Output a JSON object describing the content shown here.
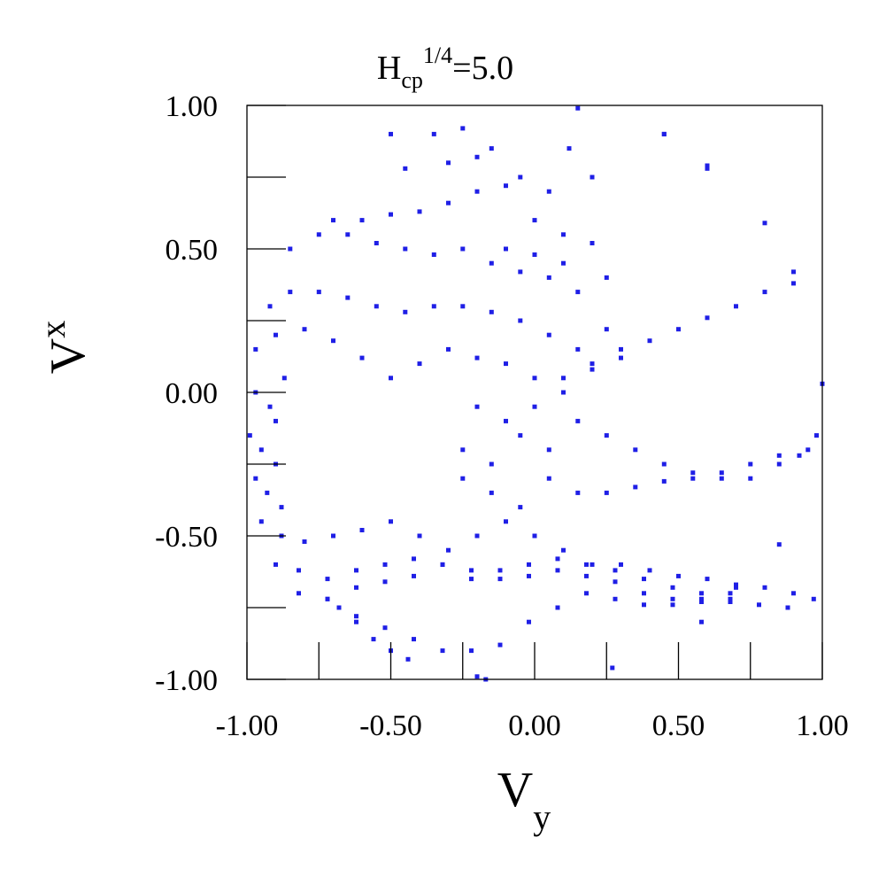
{
  "chart_data": {
    "type": "scatter",
    "title_parts": {
      "main": "H",
      "sub": "cp",
      "sup": "1/4",
      "rest": "=5.0"
    },
    "xlabel_parts": {
      "main": "V",
      "sub": "y"
    },
    "ylabel_parts": {
      "main": "V",
      "sub": "x"
    },
    "xlim": [
      -1.0,
      1.0
    ],
    "ylim": [
      -1.0,
      1.0
    ],
    "xticks": [
      -1.0,
      -0.75,
      -0.5,
      -0.25,
      0.0,
      0.25,
      0.5,
      0.75,
      1.0
    ],
    "yticks": [
      -1.0,
      -0.75,
      -0.5,
      -0.25,
      0.0,
      0.25,
      0.5,
      0.75,
      1.0
    ],
    "xtick_labels": [
      "-1.00",
      "-0.50",
      "0.00",
      "0.50",
      "1.00"
    ],
    "xtick_label_values": [
      -1.0,
      -0.5,
      0.0,
      0.5,
      1.0
    ],
    "ytick_labels": [
      "1.00",
      "0.50",
      "0.00",
      "-0.50",
      "-1.00"
    ],
    "ytick_label_values": [
      1.0,
      0.5,
      0.0,
      -0.5,
      -1.0
    ],
    "grid": false,
    "marker_color": "#1f1fe6",
    "description": "",
    "x": [
      -0.5,
      -0.35,
      -0.25,
      -0.15,
      -0.05,
      0.05,
      0.12,
      0.2,
      -0.45,
      -0.3,
      -0.2,
      -0.1,
      0.0,
      0.1,
      -0.7,
      -0.6,
      -0.5,
      -0.4,
      -0.3,
      -0.2,
      -0.1,
      0.0,
      0.1,
      0.2,
      -0.85,
      -0.75,
      -0.65,
      -0.55,
      -0.45,
      -0.35,
      -0.25,
      -0.15,
      -0.05,
      0.05,
      0.15,
      0.25,
      -0.92,
      -0.85,
      -0.75,
      -0.65,
      -0.55,
      -0.45,
      -0.35,
      -0.25,
      -0.15,
      -0.05,
      0.05,
      0.15,
      0.25,
      -0.97,
      -0.9,
      -0.8,
      -0.7,
      -0.6,
      -0.5,
      -0.4,
      -0.3,
      -0.2,
      -0.1,
      0.0,
      0.1,
      0.2,
      0.3,
      -0.97,
      -0.92,
      -0.87,
      -0.9,
      -0.2,
      -0.1,
      0.0,
      0.1,
      0.2,
      0.3,
      0.4,
      0.5,
      0.6,
      0.7,
      0.8,
      0.9,
      -0.99,
      -0.95,
      -0.9,
      -0.25,
      -0.15,
      -0.05,
      0.05,
      0.15,
      0.25,
      0.35,
      0.45,
      0.55,
      0.65,
      0.75,
      0.85,
      0.92,
      -0.97,
      -0.93,
      -0.88,
      -0.25,
      -0.15,
      -0.05,
      0.05,
      0.15,
      0.25,
      0.35,
      0.45,
      0.55,
      0.65,
      0.75,
      0.85,
      0.95,
      -0.95,
      -0.88,
      -0.8,
      -0.7,
      -0.6,
      -0.5,
      -0.4,
      -0.3,
      -0.2,
      -0.1,
      0.0,
      0.1,
      0.2,
      0.3,
      0.4,
      0.5,
      0.6,
      0.7,
      0.8,
      0.9,
      0.97,
      -0.9,
      -0.82,
      -0.72,
      -0.62,
      -0.52,
      -0.42,
      -0.32,
      -0.22,
      -0.12,
      -0.02,
      0.08,
      0.18,
      0.28,
      0.38,
      0.48,
      0.58,
      0.68,
      0.78,
      0.88,
      -0.82,
      -0.72,
      -0.62,
      -0.52,
      -0.42,
      -0.32,
      -0.22,
      -0.12,
      -0.02,
      0.08,
      0.18,
      0.28,
      0.38,
      0.48,
      0.58,
      0.68,
      -0.72,
      -0.62,
      -0.52,
      -0.42,
      -0.32,
      -0.22,
      -0.12,
      -0.02,
      0.08,
      0.18,
      0.28,
      0.38,
      0.48,
      0.58,
      0.68,
      -0.68,
      -0.62,
      -0.56,
      -0.5,
      -0.44,
      -0.2,
      -0.17,
      0.15,
      0.27,
      0.45,
      0.6,
      0.8,
      0.9,
      0.98,
      1.0,
      0.85,
      0.58,
      0.7,
      0.45,
      0.6
    ],
    "y": [
      0.9,
      0.9,
      0.92,
      0.85,
      0.75,
      0.7,
      0.85,
      0.75,
      0.78,
      0.8,
      0.82,
      0.72,
      0.6,
      0.55,
      0.6,
      0.6,
      0.62,
      0.63,
      0.66,
      0.7,
      0.5,
      0.48,
      0.45,
      0.52,
      0.5,
      0.55,
      0.55,
      0.52,
      0.5,
      0.48,
      0.5,
      0.45,
      0.42,
      0.4,
      0.35,
      0.4,
      0.3,
      0.35,
      0.35,
      0.33,
      0.3,
      0.28,
      0.3,
      0.3,
      0.28,
      0.25,
      0.2,
      0.15,
      0.22,
      0.15,
      0.2,
      0.22,
      0.18,
      0.12,
      0.05,
      0.1,
      0.15,
      0.12,
      0.1,
      0.05,
      0.0,
      0.1,
      0.12,
      0.0,
      -0.05,
      0.05,
      -0.1,
      -0.05,
      -0.1,
      -0.05,
      0.05,
      0.08,
      0.15,
      0.18,
      0.22,
      0.26,
      0.3,
      0.35,
      0.38,
      -0.15,
      -0.2,
      -0.25,
      -0.2,
      -0.25,
      -0.15,
      -0.2,
      -0.1,
      -0.15,
      -0.2,
      -0.25,
      -0.28,
      -0.3,
      -0.3,
      -0.25,
      -0.22,
      -0.3,
      -0.35,
      -0.4,
      -0.3,
      -0.35,
      -0.4,
      -0.3,
      -0.35,
      -0.35,
      -0.33,
      -0.31,
      -0.3,
      -0.28,
      -0.25,
      -0.22,
      -0.2,
      -0.45,
      -0.5,
      -0.52,
      -0.5,
      -0.48,
      -0.45,
      -0.5,
      -0.55,
      -0.5,
      -0.45,
      -0.5,
      -0.55,
      -0.6,
      -0.6,
      -0.62,
      -0.64,
      -0.65,
      -0.67,
      -0.68,
      -0.7,
      -0.72,
      -0.6,
      -0.62,
      -0.65,
      -0.62,
      -0.6,
      -0.58,
      -0.6,
      -0.65,
      -0.62,
      -0.6,
      -0.58,
      -0.6,
      -0.62,
      -0.65,
      -0.68,
      -0.7,
      -0.72,
      -0.74,
      -0.75,
      -0.7,
      -0.72,
      -0.68,
      -0.66,
      -0.64,
      -0.6,
      -0.62,
      -0.65,
      -0.64,
      -0.62,
      -0.64,
      -0.66,
      -0.7,
      -0.72,
      -0.73,
      -0.73,
      -0.72,
      -0.78,
      -0.82,
      -0.86,
      -0.9,
      -0.9,
      -0.88,
      -0.8,
      -0.75,
      -0.7,
      -0.72,
      -0.74,
      -0.74,
      -0.72,
      -0.7,
      -0.75,
      -0.8,
      -0.86,
      -0.9,
      -0.93,
      -0.99,
      -1.0,
      0.99,
      -0.96,
      0.9,
      0.79,
      0.59,
      0.42,
      -0.15,
      0.03,
      -0.53,
      -0.8,
      -0.68,
      0.9,
      0.78
    ]
  }
}
